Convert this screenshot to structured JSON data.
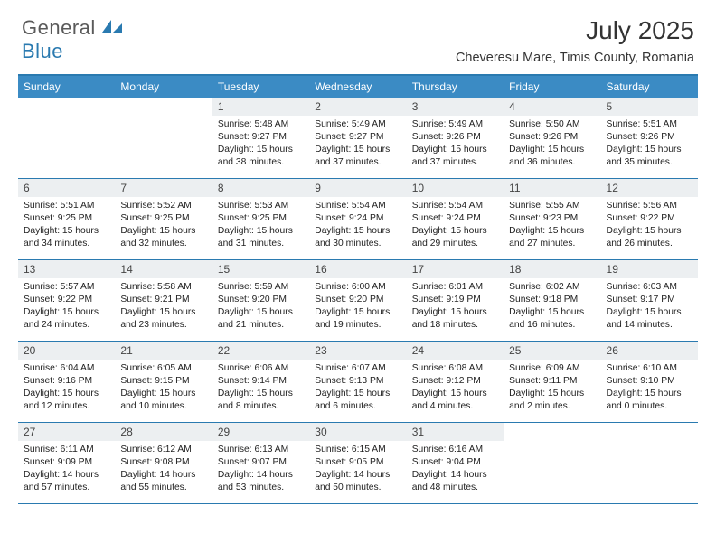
{
  "logo": {
    "text1": "General",
    "text2": "Blue"
  },
  "title": "July 2025",
  "location": "Cheveresu Mare, Timis County, Romania",
  "colors": {
    "header_bg": "#3b8bc4",
    "header_border": "#2a7ab0",
    "daynum_bg": "#eceff1",
    "text": "#222222"
  },
  "day_headers": [
    "Sunday",
    "Monday",
    "Tuesday",
    "Wednesday",
    "Thursday",
    "Friday",
    "Saturday"
  ],
  "weeks": [
    [
      null,
      null,
      {
        "n": "1",
        "sunrise": "5:48 AM",
        "sunset": "9:27 PM",
        "daylight": "15 hours and 38 minutes."
      },
      {
        "n": "2",
        "sunrise": "5:49 AM",
        "sunset": "9:27 PM",
        "daylight": "15 hours and 37 minutes."
      },
      {
        "n": "3",
        "sunrise": "5:49 AM",
        "sunset": "9:26 PM",
        "daylight": "15 hours and 37 minutes."
      },
      {
        "n": "4",
        "sunrise": "5:50 AM",
        "sunset": "9:26 PM",
        "daylight": "15 hours and 36 minutes."
      },
      {
        "n": "5",
        "sunrise": "5:51 AM",
        "sunset": "9:26 PM",
        "daylight": "15 hours and 35 minutes."
      }
    ],
    [
      {
        "n": "6",
        "sunrise": "5:51 AM",
        "sunset": "9:25 PM",
        "daylight": "15 hours and 34 minutes."
      },
      {
        "n": "7",
        "sunrise": "5:52 AM",
        "sunset": "9:25 PM",
        "daylight": "15 hours and 32 minutes."
      },
      {
        "n": "8",
        "sunrise": "5:53 AM",
        "sunset": "9:25 PM",
        "daylight": "15 hours and 31 minutes."
      },
      {
        "n": "9",
        "sunrise": "5:54 AM",
        "sunset": "9:24 PM",
        "daylight": "15 hours and 30 minutes."
      },
      {
        "n": "10",
        "sunrise": "5:54 AM",
        "sunset": "9:24 PM",
        "daylight": "15 hours and 29 minutes."
      },
      {
        "n": "11",
        "sunrise": "5:55 AM",
        "sunset": "9:23 PM",
        "daylight": "15 hours and 27 minutes."
      },
      {
        "n": "12",
        "sunrise": "5:56 AM",
        "sunset": "9:22 PM",
        "daylight": "15 hours and 26 minutes."
      }
    ],
    [
      {
        "n": "13",
        "sunrise": "5:57 AM",
        "sunset": "9:22 PM",
        "daylight": "15 hours and 24 minutes."
      },
      {
        "n": "14",
        "sunrise": "5:58 AM",
        "sunset": "9:21 PM",
        "daylight": "15 hours and 23 minutes."
      },
      {
        "n": "15",
        "sunrise": "5:59 AM",
        "sunset": "9:20 PM",
        "daylight": "15 hours and 21 minutes."
      },
      {
        "n": "16",
        "sunrise": "6:00 AM",
        "sunset": "9:20 PM",
        "daylight": "15 hours and 19 minutes."
      },
      {
        "n": "17",
        "sunrise": "6:01 AM",
        "sunset": "9:19 PM",
        "daylight": "15 hours and 18 minutes."
      },
      {
        "n": "18",
        "sunrise": "6:02 AM",
        "sunset": "9:18 PM",
        "daylight": "15 hours and 16 minutes."
      },
      {
        "n": "19",
        "sunrise": "6:03 AM",
        "sunset": "9:17 PM",
        "daylight": "15 hours and 14 minutes."
      }
    ],
    [
      {
        "n": "20",
        "sunrise": "6:04 AM",
        "sunset": "9:16 PM",
        "daylight": "15 hours and 12 minutes."
      },
      {
        "n": "21",
        "sunrise": "6:05 AM",
        "sunset": "9:15 PM",
        "daylight": "15 hours and 10 minutes."
      },
      {
        "n": "22",
        "sunrise": "6:06 AM",
        "sunset": "9:14 PM",
        "daylight": "15 hours and 8 minutes."
      },
      {
        "n": "23",
        "sunrise": "6:07 AM",
        "sunset": "9:13 PM",
        "daylight": "15 hours and 6 minutes."
      },
      {
        "n": "24",
        "sunrise": "6:08 AM",
        "sunset": "9:12 PM",
        "daylight": "15 hours and 4 minutes."
      },
      {
        "n": "25",
        "sunrise": "6:09 AM",
        "sunset": "9:11 PM",
        "daylight": "15 hours and 2 minutes."
      },
      {
        "n": "26",
        "sunrise": "6:10 AM",
        "sunset": "9:10 PM",
        "daylight": "15 hours and 0 minutes."
      }
    ],
    [
      {
        "n": "27",
        "sunrise": "6:11 AM",
        "sunset": "9:09 PM",
        "daylight": "14 hours and 57 minutes."
      },
      {
        "n": "28",
        "sunrise": "6:12 AM",
        "sunset": "9:08 PM",
        "daylight": "14 hours and 55 minutes."
      },
      {
        "n": "29",
        "sunrise": "6:13 AM",
        "sunset": "9:07 PM",
        "daylight": "14 hours and 53 minutes."
      },
      {
        "n": "30",
        "sunrise": "6:15 AM",
        "sunset": "9:05 PM",
        "daylight": "14 hours and 50 minutes."
      },
      {
        "n": "31",
        "sunrise": "6:16 AM",
        "sunset": "9:04 PM",
        "daylight": "14 hours and 48 minutes."
      },
      null,
      null
    ]
  ],
  "labels": {
    "sunrise": "Sunrise:",
    "sunset": "Sunset:",
    "daylight": "Daylight:"
  }
}
